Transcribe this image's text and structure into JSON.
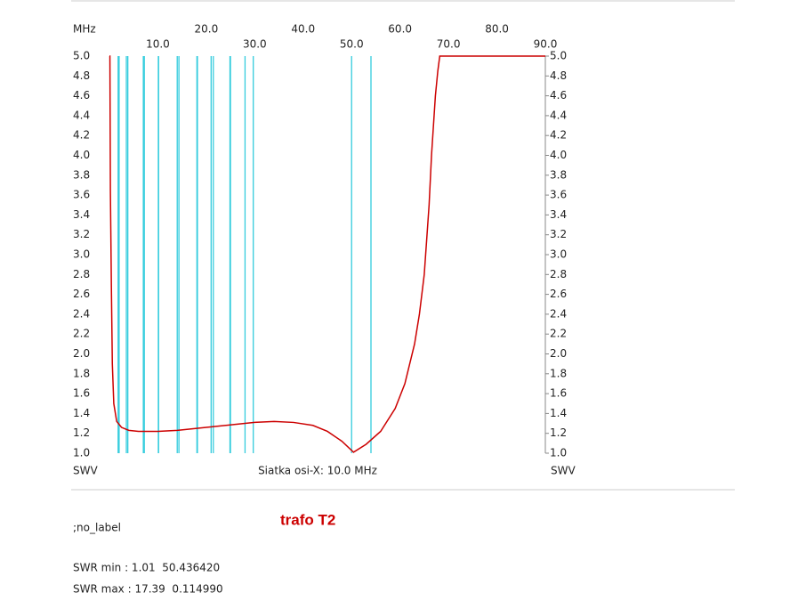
{
  "chart_data": {
    "type": "line",
    "title": "trafo T2",
    "x_axis_label": "MHz",
    "y_axis_label": "SWV",
    "y2_axis_label": "SWV",
    "grid_note": "Siatka osi-X: 10.0 MHz",
    "label": ";no_label",
    "stats": [
      "SWR min : 1.01  50.436420",
      "SWR max : 17.39  0.114990"
    ],
    "xlim": [
      0,
      90
    ],
    "xticks": [
      {
        "value": 10,
        "label": "10.0"
      },
      {
        "value": 20,
        "label": "20.0"
      },
      {
        "value": 30,
        "label": "30.0"
      },
      {
        "value": 40,
        "label": "40.0"
      },
      {
        "value": 50,
        "label": "50.0"
      },
      {
        "value": 60,
        "label": "60.0"
      },
      {
        "value": 70,
        "label": "70.0"
      },
      {
        "value": 80,
        "label": "80.0"
      },
      {
        "value": 90,
        "label": "90.0"
      }
    ],
    "ylim": [
      1,
      5
    ],
    "yticks": [
      {
        "value": 1,
        "label": "1.0"
      },
      1.2,
      1.4,
      1.6,
      1.8,
      {
        "value": 2,
        "label": "2.0"
      },
      2.2,
      2.4,
      2.6,
      2.8,
      {
        "value": 3,
        "label": "3.0"
      },
      3.2,
      3.4,
      3.6,
      3.8,
      {
        "value": 4,
        "label": "4.0"
      },
      4.2,
      4.4,
      4.6,
      4.8,
      {
        "value": 5,
        "label": "5.0"
      }
    ],
    "band_markers": [
      1.8,
      2.0,
      3.5,
      3.8,
      7.0,
      7.2,
      10.1,
      10.15,
      14.0,
      14.35,
      18.068,
      18.168,
      21.0,
      21.45,
      24.89,
      24.99,
      28.0,
      29.7,
      50.0,
      54.0
    ],
    "band_color": "#33ccdd",
    "color": "#cc0000",
    "x": [
      0.1,
      0.2,
      0.4,
      0.6,
      0.9,
      1.5,
      2.5,
      4,
      6,
      10,
      14,
      18,
      22,
      26,
      30,
      34,
      38,
      42,
      45,
      48,
      50.4,
      53,
      56,
      59,
      61,
      63,
      64,
      65,
      66,
      66.5,
      67.3,
      67.8,
      68.2,
      90
    ],
    "values": [
      5.0,
      3.65,
      2.7,
      1.9,
      1.5,
      1.32,
      1.26,
      1.23,
      1.22,
      1.22,
      1.23,
      1.25,
      1.27,
      1.29,
      1.31,
      1.32,
      1.31,
      1.28,
      1.22,
      1.12,
      1.01,
      1.09,
      1.22,
      1.45,
      1.7,
      2.1,
      2.4,
      2.8,
      3.5,
      4.0,
      4.6,
      4.85,
      5.0,
      5.0
    ]
  }
}
